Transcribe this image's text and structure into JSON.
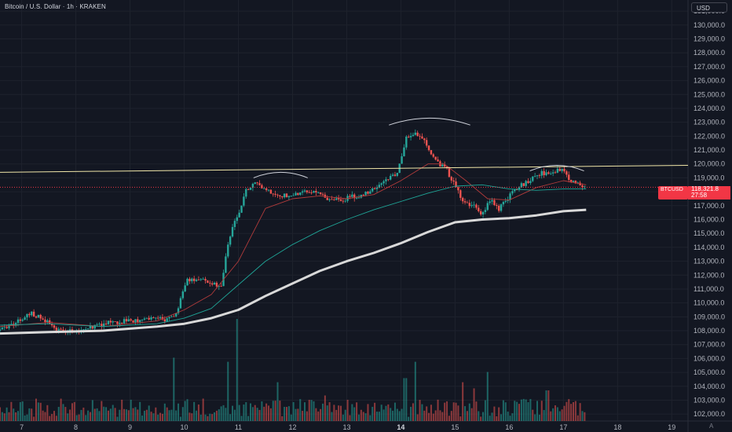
{
  "header": {
    "title": "Bitcoin / U.S. Dollar · 1h · KRAKEN",
    "currency": "USD"
  },
  "price_tag": {
    "symbol": "BTCUSD",
    "price": "118,321.8",
    "countdown": "27:58"
  },
  "logo_text": "A",
  "colors": {
    "background": "#131722",
    "up": "#26a69a",
    "down": "#ef5350",
    "resistance_line": "#f0e6a8",
    "ma_fast": "#b23b3b",
    "ma_mid": "#1fa597",
    "ma_slow": "#d9d9d9",
    "last_price": "#f23645"
  },
  "chart_data": {
    "type": "candlestick",
    "title": "Bitcoin / U.S. Dollar · 1h · KRAKEN",
    "ylabel": "USD",
    "ylim": [
      101500,
      131800
    ],
    "yticks": [
      "131,000.0",
      "130,000.0",
      "129,000.0",
      "128,000.0",
      "127,000.0",
      "126,000.0",
      "125,000.0",
      "124,000.0",
      "123,000.0",
      "122,000.0",
      "121,000.0",
      "120,000.0",
      "119,000.0",
      "118,000.0",
      "117,000.0",
      "116,000.0",
      "115,000.0",
      "114,000.0",
      "113,000.0",
      "112,000.0",
      "111,000.0",
      "110,000.0",
      "109,000.0",
      "108,000.0",
      "107,000.0",
      "106,000.0",
      "105,000.0",
      "104,000.0",
      "103,000.0",
      "102,000.0"
    ],
    "xticks": [
      {
        "label": "7",
        "day": 7
      },
      {
        "label": "8",
        "day": 8
      },
      {
        "label": "9",
        "day": 9
      },
      {
        "label": "10",
        "day": 10
      },
      {
        "label": "11",
        "day": 11
      },
      {
        "label": "12",
        "day": 12
      },
      {
        "label": "13",
        "day": 13
      },
      {
        "label": "14",
        "day": 14,
        "bold": true
      },
      {
        "label": "15",
        "day": 15
      },
      {
        "label": "16",
        "day": 16
      },
      {
        "label": "17",
        "day": 17
      },
      {
        "label": "18",
        "day": 18
      },
      {
        "label": "19",
        "day": 19
      }
    ],
    "xlim": [
      6.6,
      19.3
    ],
    "last_price": 118321.8,
    "last_time": 17.42,
    "price_path": [
      [
        6.6,
        108000
      ],
      [
        6.9,
        108500
      ],
      [
        7.2,
        109300
      ],
      [
        7.45,
        108800
      ],
      [
        7.75,
        108000
      ],
      [
        8.0,
        107900
      ],
      [
        8.2,
        108100
      ],
      [
        8.45,
        108400
      ],
      [
        8.7,
        108600
      ],
      [
        8.95,
        108700
      ],
      [
        9.2,
        108800
      ],
      [
        9.45,
        109000
      ],
      [
        9.7,
        108800
      ],
      [
        9.9,
        109200
      ],
      [
        10.0,
        110800
      ],
      [
        10.1,
        111600
      ],
      [
        10.35,
        111600
      ],
      [
        10.6,
        111400
      ],
      [
        10.72,
        111200
      ],
      [
        10.82,
        113500
      ],
      [
        10.92,
        115500
      ],
      [
        11.0,
        116000
      ],
      [
        11.2,
        118200
      ],
      [
        11.4,
        118600
      ],
      [
        11.6,
        118100
      ],
      [
        11.8,
        117700
      ],
      [
        12.0,
        117800
      ],
      [
        12.2,
        117900
      ],
      [
        12.45,
        118000
      ],
      [
        12.7,
        117500
      ],
      [
        12.9,
        117400
      ],
      [
        13.1,
        117600
      ],
      [
        13.35,
        117800
      ],
      [
        13.55,
        118200
      ],
      [
        13.75,
        118800
      ],
      [
        13.95,
        119200
      ],
      [
        14.05,
        120500
      ],
      [
        14.15,
        122000
      ],
      [
        14.3,
        122300
      ],
      [
        14.45,
        121800
      ],
      [
        14.6,
        120800
      ],
      [
        14.75,
        120000
      ],
      [
        14.9,
        119500
      ],
      [
        15.05,
        118300
      ],
      [
        15.2,
        117300
      ],
      [
        15.4,
        117000
      ],
      [
        15.55,
        116400
      ],
      [
        15.7,
        117500
      ],
      [
        15.85,
        116700
      ],
      [
        16.0,
        117500
      ],
      [
        16.2,
        118300
      ],
      [
        16.4,
        118800
      ],
      [
        16.6,
        119300
      ],
      [
        16.8,
        119400
      ],
      [
        17.0,
        119600
      ],
      [
        17.15,
        118900
      ],
      [
        17.3,
        118500
      ],
      [
        17.42,
        118322
      ]
    ],
    "series": [
      {
        "name": "",
        "role": "ma_fast",
        "points": [
          [
            6.6,
            108300
          ],
          [
            7.5,
            108600
          ],
          [
            8.5,
            108300
          ],
          [
            9.5,
            108700
          ],
          [
            10.0,
            109500
          ],
          [
            10.5,
            110600
          ],
          [
            11.0,
            113000
          ],
          [
            11.5,
            116800
          ],
          [
            12.0,
            117500
          ],
          [
            12.5,
            117700
          ],
          [
            13.0,
            117500
          ],
          [
            13.5,
            117800
          ],
          [
            14.0,
            118800
          ],
          [
            14.5,
            120000
          ],
          [
            14.8,
            120000
          ],
          [
            15.2,
            118800
          ],
          [
            15.6,
            117500
          ],
          [
            16.0,
            117400
          ],
          [
            16.5,
            118300
          ],
          [
            17.0,
            118800
          ],
          [
            17.42,
            118500
          ]
        ]
      },
      {
        "name": "",
        "role": "ma_mid",
        "points": [
          [
            6.6,
            108400
          ],
          [
            7.5,
            108500
          ],
          [
            8.5,
            108300
          ],
          [
            9.5,
            108500
          ],
          [
            10.0,
            108900
          ],
          [
            10.5,
            109600
          ],
          [
            11.0,
            111300
          ],
          [
            11.5,
            113000
          ],
          [
            12.0,
            114200
          ],
          [
            12.5,
            115200
          ],
          [
            13.0,
            116000
          ],
          [
            13.5,
            116700
          ],
          [
            14.0,
            117300
          ],
          [
            14.5,
            117900
          ],
          [
            15.0,
            118400
          ],
          [
            15.5,
            118500
          ],
          [
            16.0,
            118200
          ],
          [
            16.5,
            118100
          ],
          [
            17.0,
            118200
          ],
          [
            17.42,
            118200
          ]
        ]
      },
      {
        "name": "",
        "role": "ma_slow",
        "points": [
          [
            6.6,
            107800
          ],
          [
            7.5,
            107900
          ],
          [
            8.5,
            108000
          ],
          [
            9.5,
            108300
          ],
          [
            10.0,
            108500
          ],
          [
            10.5,
            108900
          ],
          [
            11.0,
            109500
          ],
          [
            11.5,
            110500
          ],
          [
            12.0,
            111400
          ],
          [
            12.5,
            112300
          ],
          [
            13.0,
            113000
          ],
          [
            13.5,
            113600
          ],
          [
            14.0,
            114300
          ],
          [
            14.5,
            115100
          ],
          [
            15.0,
            115800
          ],
          [
            15.5,
            116000
          ],
          [
            16.0,
            116100
          ],
          [
            16.5,
            116300
          ],
          [
            17.0,
            116600
          ],
          [
            17.42,
            116700
          ]
        ]
      }
    ],
    "resistance_line": [
      [
        6.6,
        119400
      ],
      [
        19.3,
        119900
      ]
    ],
    "arcs": [
      {
        "x1": 11.28,
        "x2": 12.28,
        "base": 119000,
        "peak": 119400
      },
      {
        "x1": 13.78,
        "x2": 15.28,
        "base": 122800,
        "peak": 123300
      },
      {
        "x1": 16.38,
        "x2": 17.38,
        "base": 119500,
        "peak": 119900
      }
    ],
    "volume_spikes": [
      {
        "day": 9.82,
        "h": 0.62
      },
      {
        "day": 10.82,
        "h": 0.58
      },
      {
        "day": 10.97,
        "h": 1.0
      },
      {
        "day": 11.72,
        "h": 0.38
      },
      {
        "day": 12.6,
        "h": 0.25
      },
      {
        "day": 14.25,
        "h": 0.58
      },
      {
        "day": 14.08,
        "h": 0.42
      },
      {
        "day": 15.15,
        "h": 0.38
      },
      {
        "day": 15.6,
        "h": 0.48
      },
      {
        "day": 15.35,
        "h": 0.32
      },
      {
        "day": 16.7,
        "h": 0.3
      }
    ]
  }
}
